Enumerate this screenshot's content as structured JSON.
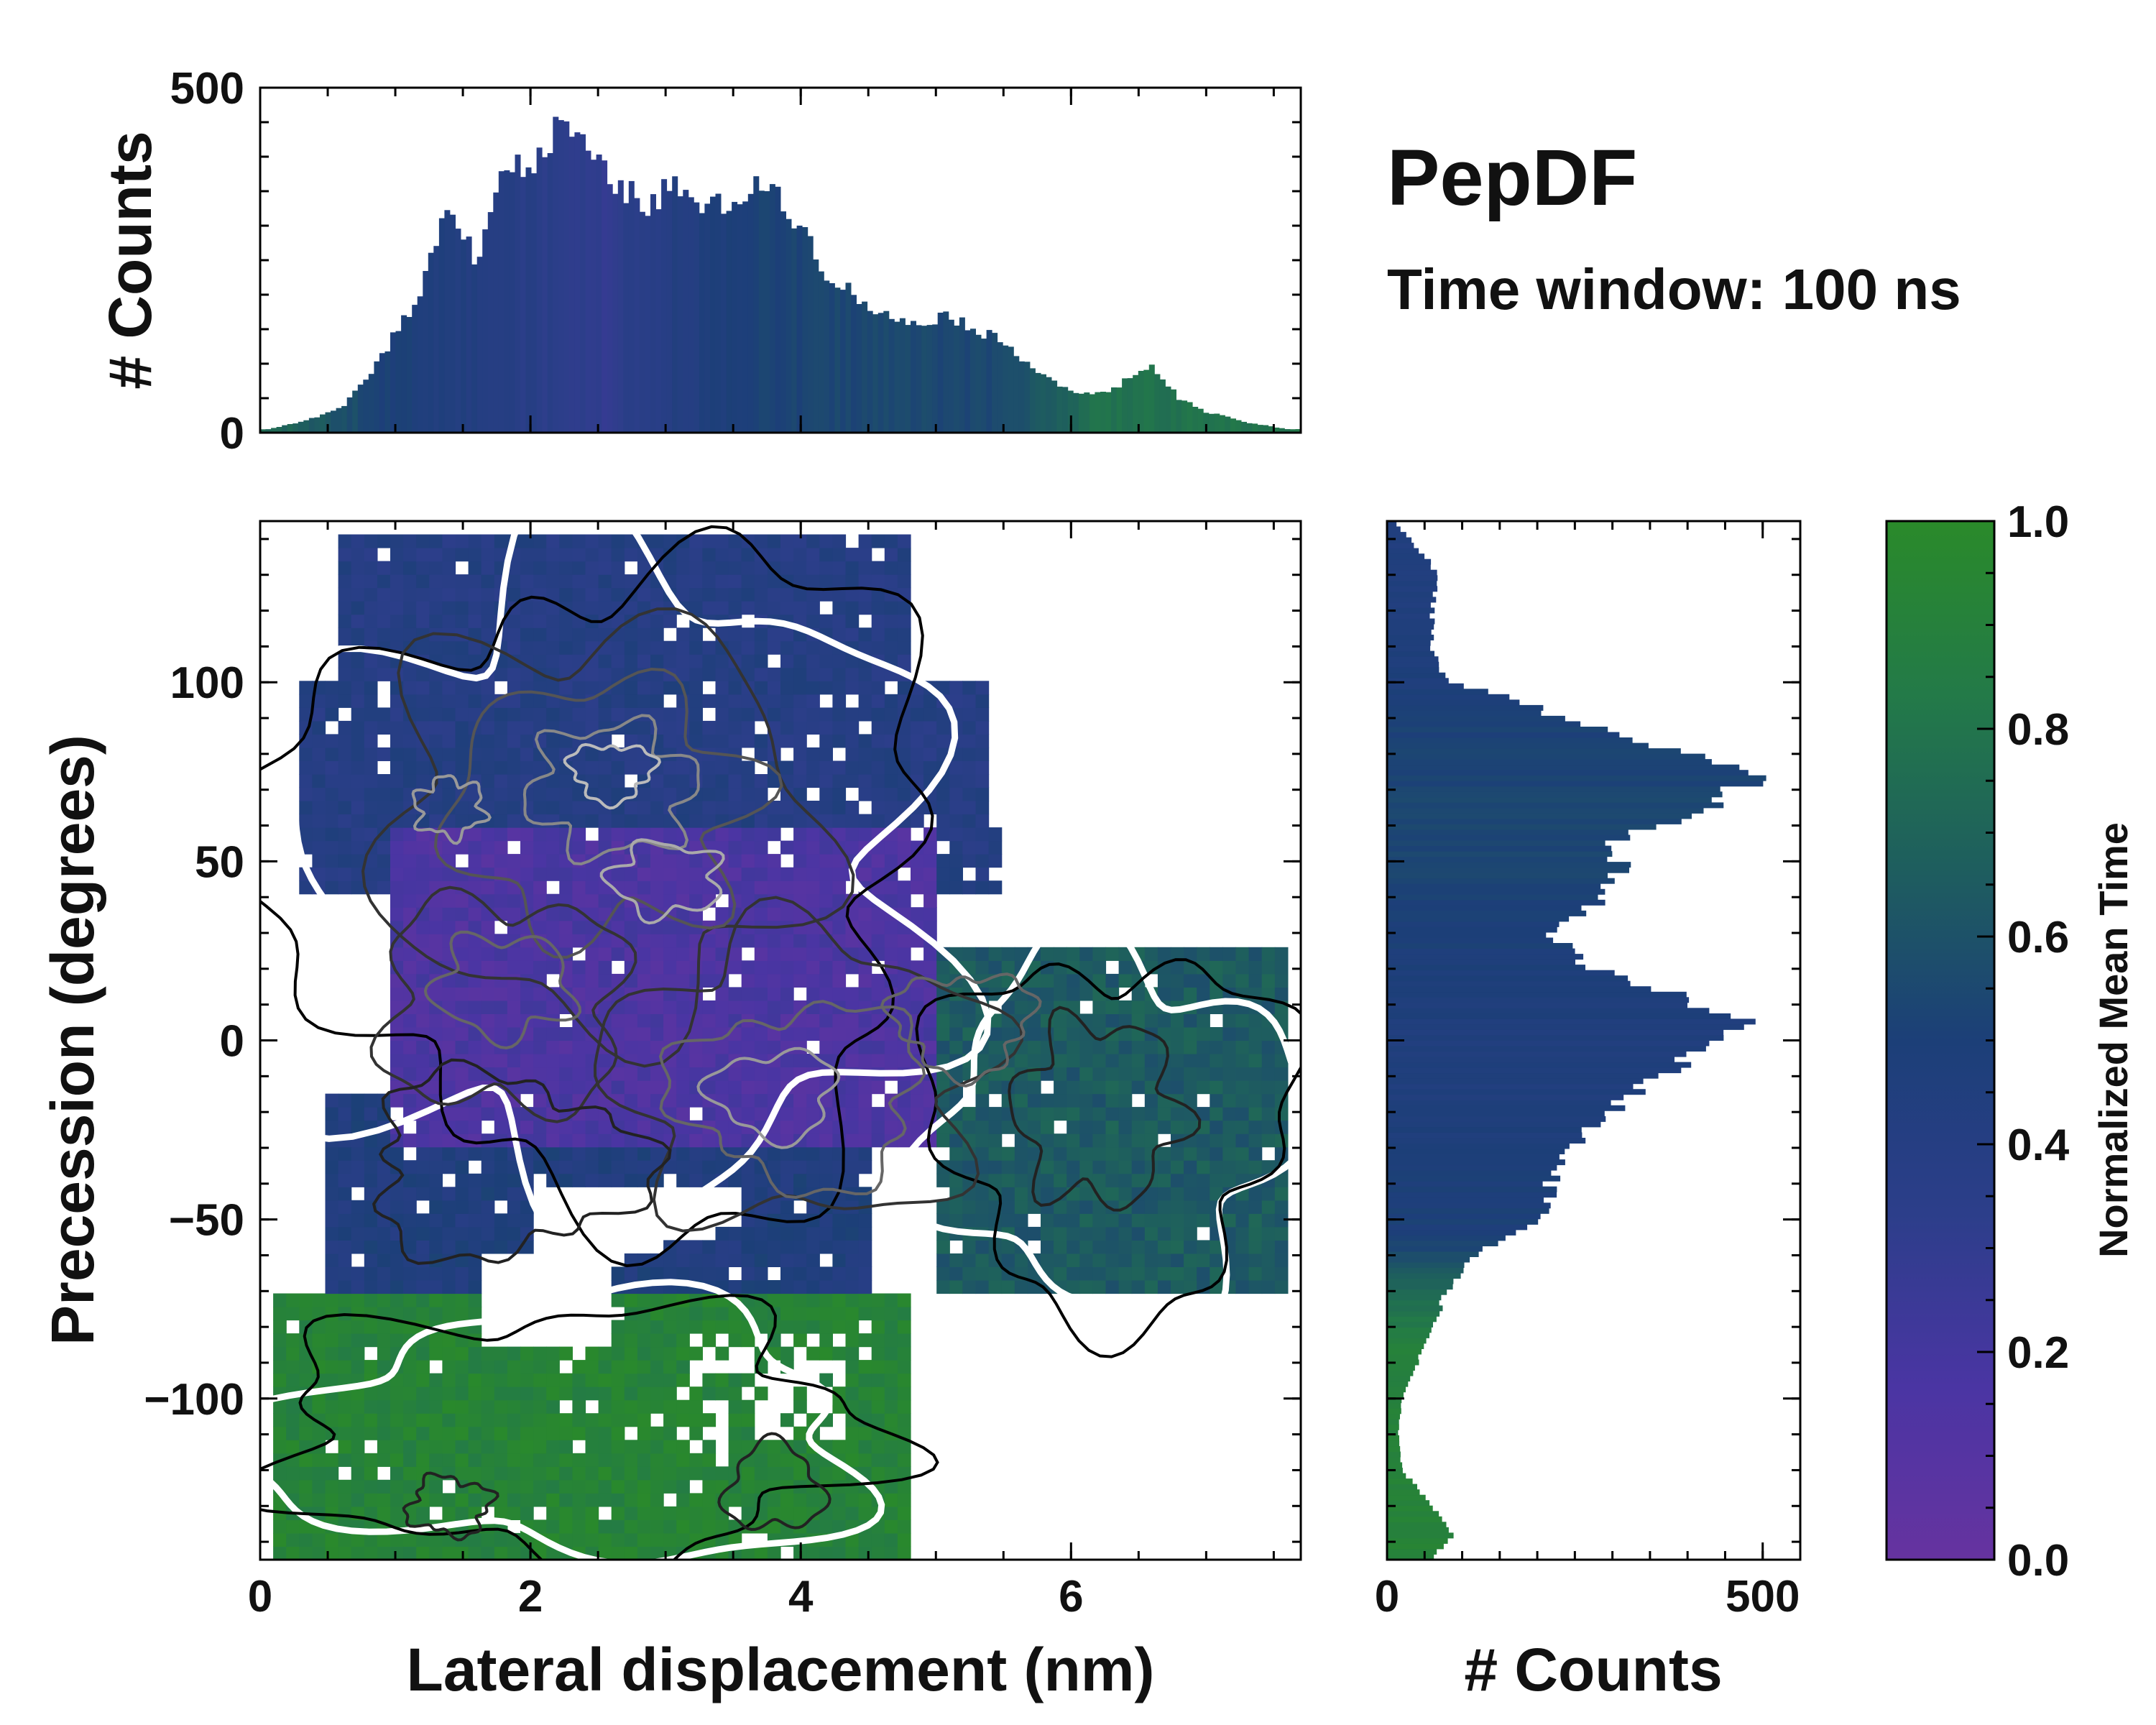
{
  "chart_data": [
    {
      "type": "heatmap",
      "title": "PepDF",
      "subtitle": "Time window: 100 ns",
      "xlabel": "Lateral displacement (nm)",
      "ylabel": "Precession (degrees)",
      "xlim": [
        0,
        7.7
      ],
      "ylim": [
        -145,
        145
      ],
      "xticks": [
        0,
        2,
        4,
        6
      ],
      "yticks": [
        -100,
        -50,
        0,
        50,
        100
      ],
      "ytick_labels": [
        "−100",
        "−50",
        "0",
        "50",
        "100"
      ],
      "color_metric": "Normalized Mean Time",
      "regions": [
        {
          "name": "purple core",
          "x": [
            1.0,
            5.0
          ],
          "y": [
            -30,
            60
          ],
          "value": 0.15
        },
        {
          "name": "blue upper band",
          "x": [
            0.3,
            5.5
          ],
          "y": [
            40,
            140
          ],
          "value": 0.4
        },
        {
          "name": "blue lower band",
          "x": [
            0.5,
            4.5
          ],
          "y": [
            -70,
            -15
          ],
          "value": 0.45
        },
        {
          "name": "teal right lobe",
          "x": [
            5.0,
            7.6
          ],
          "y": [
            -80,
            25
          ],
          "value": 0.65
        },
        {
          "name": "green bottom lobe",
          "x": [
            0.1,
            4.8
          ],
          "y": [
            -145,
            -70
          ],
          "value": 0.92
        }
      ]
    },
    {
      "type": "bar",
      "name": "top marginal histogram",
      "xlabel": "",
      "ylabel": "# Counts",
      "ylim": [
        0,
        500
      ],
      "yticks": [
        0,
        500
      ],
      "x_range": [
        0,
        7.7
      ],
      "bins": 192,
      "profile_x": [
        0.05,
        0.3,
        0.6,
        0.9,
        1.2,
        1.4,
        1.6,
        1.8,
        2.0,
        2.2,
        2.25,
        2.4,
        2.6,
        2.9,
        3.05,
        3.3,
        3.5,
        3.8,
        4.0,
        4.2,
        4.4,
        4.6,
        4.8,
        5.1,
        5.3,
        5.5,
        5.7,
        5.9,
        6.1,
        6.3,
        6.5,
        6.6,
        6.8,
        7.0,
        7.3,
        7.6
      ],
      "profile_y": [
        5,
        15,
        35,
        110,
        210,
        340,
        250,
        390,
        380,
        440,
        455,
        410,
        360,
        330,
        360,
        320,
        340,
        360,
        300,
        230,
        200,
        170,
        160,
        170,
        150,
        130,
        100,
        70,
        55,
        60,
        90,
        95,
        50,
        30,
        15,
        5
      ],
      "color_profile_x": [
        0,
        1.0,
        2.5,
        3.5,
        4.5,
        5.5,
        6.2,
        7.7
      ],
      "color_profile_v": [
        0.75,
        0.5,
        0.3,
        0.5,
        0.55,
        0.55,
        0.78,
        0.8
      ]
    },
    {
      "type": "bar",
      "orientation": "horizontal",
      "name": "right marginal histogram",
      "xlabel": "# Counts",
      "ylabel": "",
      "xlim": [
        0,
        550
      ],
      "xticks": [
        0,
        500
      ],
      "y_range": [
        -145,
        145
      ],
      "bins": 192,
      "profile_y": [
        -145,
        -138,
        -130,
        -120,
        -110,
        -100,
        -90,
        -80,
        -70,
        -60,
        -55,
        -50,
        -40,
        -30,
        -20,
        -10,
        0,
        5,
        10,
        20,
        30,
        40,
        50,
        55,
        60,
        70,
        75,
        80,
        90,
        95,
        100,
        110,
        120,
        130,
        140,
        145
      ],
      "profile_v": [
        60,
        90,
        60,
        20,
        15,
        20,
        40,
        60,
        80,
        120,
        160,
        200,
        220,
        250,
        300,
        360,
        440,
        480,
        420,
        270,
        220,
        290,
        310,
        280,
        360,
        470,
        490,
        400,
        230,
        180,
        80,
        60,
        60,
        70,
        30,
        10
      ],
      "color_profile_y": [
        -145,
        -85,
        -70,
        -55,
        0,
        60,
        120,
        145
      ],
      "color_profile_v": [
        0.92,
        0.9,
        0.72,
        0.5,
        0.45,
        0.55,
        0.45,
        0.45
      ]
    },
    {
      "type": "colorbar",
      "label": "Normalized Mean Time",
      "ticks": [
        0.0,
        0.2,
        0.4,
        0.6,
        0.8,
        1.0
      ],
      "tick_labels": [
        "0.0",
        "0.2",
        "0.4",
        "0.6",
        "0.8",
        "1.0"
      ],
      "colors": [
        "#6633a0",
        "#4a35a3",
        "#2c3e8a",
        "#1c3f78",
        "#1e5e5e",
        "#237a48",
        "#2a8a2a"
      ]
    }
  ]
}
